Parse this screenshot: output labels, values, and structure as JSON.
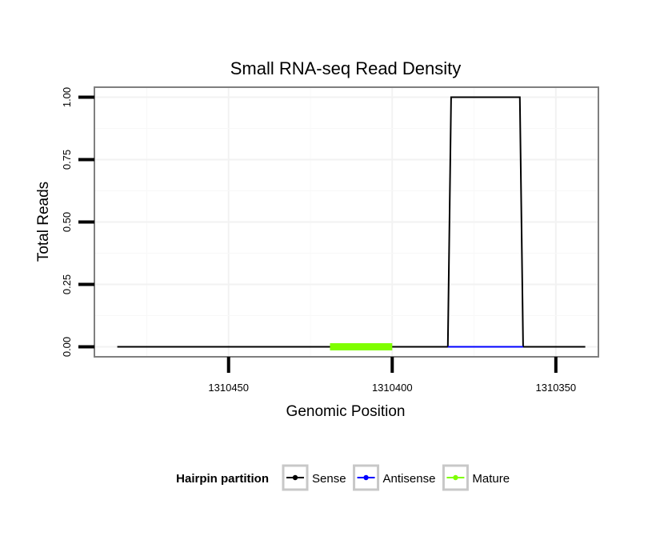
{
  "chart_data": {
    "type": "line",
    "title": "Small RNA-seq Read Density",
    "xlabel": "Genomic Position",
    "ylabel": "Total Reads",
    "x_reversed": true,
    "xlim": [
      1310491,
      1310337
    ],
    "ylim": [
      -0.04,
      1.04
    ],
    "x_ticks": [
      1310450,
      1310400,
      1310350
    ],
    "x_tick_labels": [
      "1310450",
      "1310400",
      "1310350"
    ],
    "y_ticks": [
      0.0,
      0.25,
      0.5,
      0.75,
      1.0
    ],
    "y_tick_labels": [
      "0.00",
      "0.25",
      "0.50",
      "0.75",
      "1.00"
    ],
    "grid": true,
    "series": [
      {
        "name": "Sense",
        "color": "#000000",
        "x": [
          1310484,
          1310383,
          1310382,
          1310361,
          1310360,
          1310341
        ],
        "values": [
          0,
          0,
          1,
          1,
          0,
          0
        ]
      },
      {
        "name": "Antisense",
        "color": "#0000ff",
        "x": [
          1310383,
          1310360
        ],
        "values": [
          0,
          0
        ]
      },
      {
        "name": "Mature",
        "color": "#7fff00",
        "x": [
          1310419,
          1310400
        ],
        "values": [
          0,
          0
        ]
      }
    ],
    "legend": {
      "title": "Hairpin partition",
      "position": "bottom",
      "items": [
        "Sense",
        "Antisense",
        "Mature"
      ]
    }
  }
}
